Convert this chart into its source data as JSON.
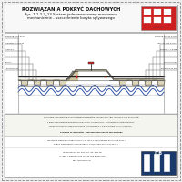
{
  "bg_color": "#e8e8e8",
  "page_color": "#f0f0f0",
  "title_text": "ROZWIĄZANIA POKRYĆ DACHOWYCH",
  "subtitle1": "Rys. 1.1.2.2_13 System jednowarstwowy mocowany",
  "subtitle2": "mechanicznie - uszczelnienie koryta spływowego",
  "logo_red": "#cc2020",
  "white": "#ffffff",
  "draw_area_bg": "#f8f8f0",
  "trap_fill": "#cfc4a0",
  "trap_line": "#444444",
  "membrane_dark": "#222222",
  "wave_blue": "#3355aa",
  "screw_red": "#cc2222",
  "anno_line": "#555555",
  "footer_bg": "#f5f5f0",
  "border_outer": "#aaaaaa",
  "anno_left": [
    "błona PE-FLEX P4 S4",
    "nakrętka konika S4",
    "ABG-G S",
    "Śrub pl.",
    "koryto...",
    "TechniTOP 93"
  ],
  "anno_right": [
    "błona PE-TGK P4 S4 ms",
    "ABG-ATS TGK S4 ms",
    "TYREKOLA A-B MB",
    "poduszkę S4 mb",
    "koryto spływ.",
    "TechniTOP 93 ms"
  ]
}
